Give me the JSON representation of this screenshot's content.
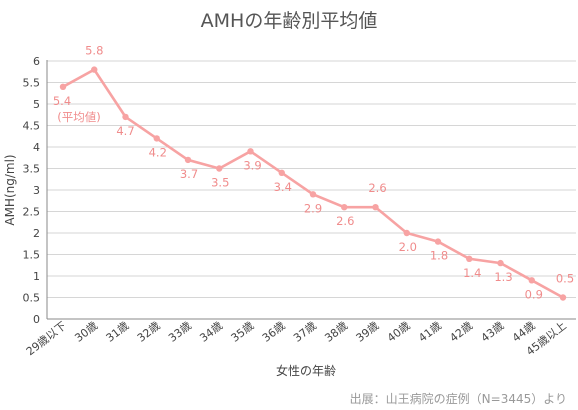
{
  "chart_data": {
    "type": "line",
    "title": "AMHの年齢別平均値",
    "xlabel": "女性の年齢",
    "ylabel": "AMH(ng/ml)",
    "categories": [
      "29歳以下",
      "30歳",
      "31歳",
      "32歳",
      "33歳",
      "34歳",
      "35歳",
      "36歳",
      "37歳",
      "38歳",
      "39歳",
      "40歳",
      "41歳",
      "42歳",
      "43歳",
      "44歳",
      "45歳以上"
    ],
    "series": [
      {
        "values": [
          5.4,
          5.8,
          4.7,
          4.2,
          3.7,
          3.5,
          3.9,
          3.4,
          2.9,
          2.6,
          2.6,
          2.0,
          1.8,
          1.4,
          1.3,
          0.9,
          0.5
        ],
        "labels": [
          "5.4",
          "5.8",
          "4.7",
          "4.2",
          "3.7",
          "3.5",
          "3.9",
          "3.4",
          "2.9",
          "2.6",
          "2.6",
          "2.0",
          "1.8",
          "1.4",
          "1.3",
          "0.9",
          "0.5"
        ]
      }
    ],
    "first_label_note": "(平均値)",
    "ylim": [
      0,
      6
    ],
    "yticks": [
      "0",
      "0.5",
      "1",
      "1.5",
      "2",
      "2.5",
      "3",
      "3.5",
      "4",
      "4.5",
      "5",
      "5.5",
      "6"
    ],
    "grid": true,
    "colors": {
      "line": "#f7a3a3",
      "label": "#f08c8c",
      "grid": "#d6d6d6"
    }
  },
  "source": "出展：山王病院の症例（N=3445）より"
}
